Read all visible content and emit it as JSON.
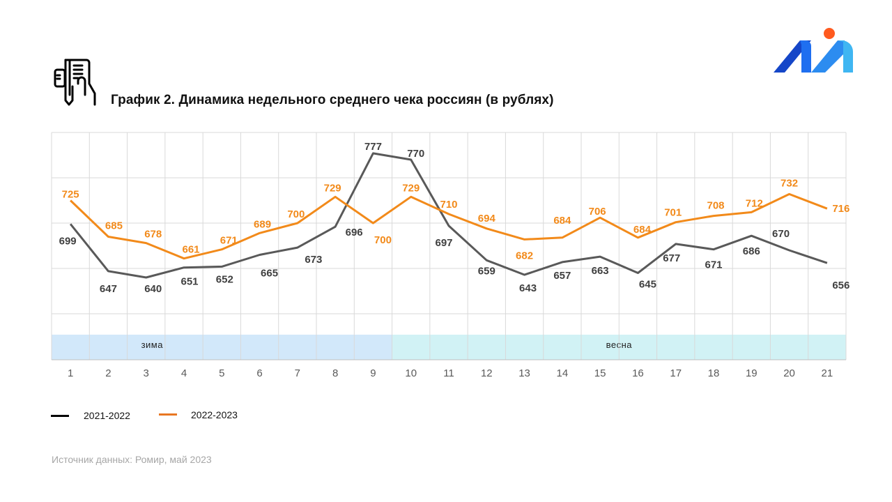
{
  "header": {
    "title": "График 2. Динамика недельного среднего чека россиян (в рублях)",
    "icon": "receipt-in-hand-icon",
    "logo": "brand-logo-icon"
  },
  "colors": {
    "series_2021": "#595959",
    "series_2022": "#f28a1a",
    "band_winter": "#d2e8fa",
    "band_spring": "#d1f2f5",
    "grid": "#d9d9d9",
    "logo_dark": "#1546c8",
    "logo_mid": "#1f6ff0",
    "logo_light": "#3fb6f2",
    "logo_dot": "#ff5a1f"
  },
  "chart_data": {
    "type": "line",
    "title": "График 2. Динамика недельного среднего чека россиян (в рублях)",
    "xlabel": "",
    "ylabel": "",
    "x": [
      "1",
      "2",
      "3",
      "4",
      "5",
      "6",
      "7",
      "8",
      "9",
      "10",
      "11",
      "12",
      "13",
      "14",
      "15",
      "16",
      "17",
      "18",
      "19",
      "20",
      "21"
    ],
    "ylim": [
      550,
      800
    ],
    "grid": true,
    "legend_position": "bottom-left",
    "series": [
      {
        "name": "2021-2022",
        "color": "#595959",
        "values": [
          699,
          647,
          640,
          651,
          652,
          665,
          673,
          696,
          777,
          770,
          697,
          659,
          643,
          657,
          663,
          645,
          677,
          671,
          686,
          670,
          656
        ]
      },
      {
        "name": "2022-2023",
        "color": "#f28a1a",
        "values": [
          725,
          685,
          678,
          661,
          671,
          689,
          700,
          729,
          700,
          729,
          710,
          694,
          682,
          684,
          706,
          684,
          701,
          708,
          712,
          732,
          716
        ]
      }
    ],
    "bands": [
      {
        "label": "зима",
        "from": 1,
        "to": 9
      },
      {
        "label": "весна",
        "from": 10,
        "to": 21
      }
    ]
  },
  "legend": {
    "items": [
      {
        "label": "2021-2022",
        "color": "#000000"
      },
      {
        "label": "2022-2023",
        "color": "#e87722"
      }
    ]
  },
  "footer": {
    "source": "Источник данных: Ромир, май 2023"
  }
}
